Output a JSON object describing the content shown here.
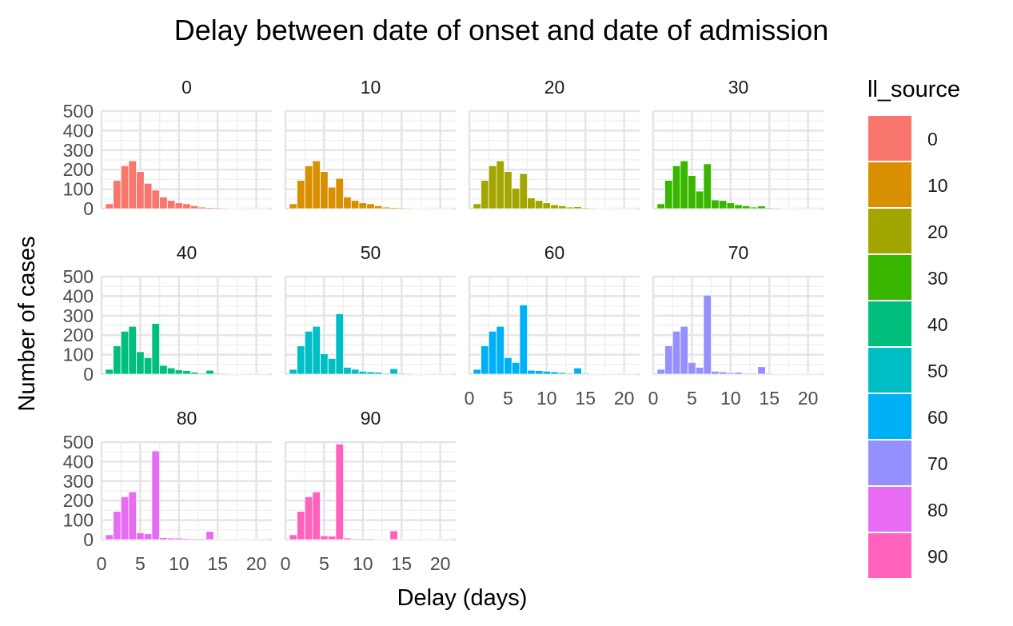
{
  "chart_data": {
    "type": "bar",
    "title": "Delay between date of onset and date of admission",
    "xlabel": "Delay (days)",
    "ylabel": "Number of cases",
    "xlim": [
      0,
      22
    ],
    "ylim": [
      0,
      500
    ],
    "x_ticks": [
      0,
      5,
      10,
      15,
      20
    ],
    "y_ticks": [
      0,
      100,
      200,
      300,
      400,
      500
    ],
    "grid": true,
    "legend": {
      "title": "ll_source",
      "placement": "right",
      "entries": [
        "0",
        "10",
        "20",
        "30",
        "40",
        "50",
        "60",
        "70",
        "80",
        "90"
      ]
    },
    "x": [
      1,
      2,
      3,
      4,
      5,
      6,
      7,
      8,
      9,
      10,
      11,
      12,
      13,
      14,
      15,
      16,
      17,
      18,
      19,
      20,
      21
    ],
    "series": [
      {
        "name": "0",
        "color": "#F8766D",
        "values": [
          25,
          145,
          220,
          245,
          190,
          130,
          95,
          60,
          42,
          30,
          25,
          15,
          8,
          6,
          5,
          4,
          3,
          3,
          1,
          1,
          1
        ]
      },
      {
        "name": "10",
        "color": "#D89000",
        "values": [
          25,
          145,
          220,
          245,
          190,
          110,
          155,
          60,
          42,
          30,
          25,
          15,
          8,
          6,
          5,
          4,
          3,
          3,
          1,
          1,
          1
        ]
      },
      {
        "name": "20",
        "color": "#A3A500",
        "values": [
          25,
          145,
          220,
          245,
          190,
          105,
          180,
          55,
          42,
          30,
          20,
          15,
          8,
          10,
          5,
          4,
          3,
          3,
          1,
          1,
          1
        ]
      },
      {
        "name": "30",
        "color": "#39B600",
        "values": [
          25,
          145,
          220,
          245,
          170,
          90,
          230,
          45,
          42,
          30,
          20,
          15,
          8,
          14,
          5,
          4,
          3,
          3,
          1,
          1,
          1
        ]
      },
      {
        "name": "40",
        "color": "#00BF7D",
        "values": [
          25,
          145,
          220,
          245,
          115,
          85,
          260,
          45,
          32,
          22,
          18,
          10,
          5,
          20,
          5,
          4,
          3,
          2,
          1,
          1,
          1
        ]
      },
      {
        "name": "50",
        "color": "#00BFC4",
        "values": [
          25,
          145,
          220,
          245,
          105,
          80,
          310,
          35,
          25,
          15,
          12,
          10,
          5,
          28,
          5,
          4,
          3,
          2,
          1,
          1,
          1
        ]
      },
      {
        "name": "60",
        "color": "#00B0F6",
        "values": [
          25,
          145,
          220,
          245,
          85,
          60,
          355,
          20,
          18,
          15,
          12,
          8,
          5,
          32,
          5,
          3,
          2,
          2,
          1,
          1,
          1
        ]
      },
      {
        "name": "70",
        "color": "#9590FF",
        "values": [
          25,
          145,
          220,
          245,
          60,
          35,
          405,
          15,
          12,
          8,
          10,
          5,
          5,
          38,
          5,
          3,
          2,
          2,
          1,
          1,
          1
        ]
      },
      {
        "name": "80",
        "color": "#E76BF3",
        "values": [
          25,
          145,
          220,
          245,
          35,
          30,
          455,
          10,
          8,
          8,
          6,
          5,
          5,
          42,
          4,
          3,
          2,
          2,
          1,
          1,
          1
        ]
      },
      {
        "name": "90",
        "color": "#FF62BC",
        "values": [
          25,
          145,
          220,
          245,
          20,
          18,
          490,
          8,
          5,
          5,
          5,
          3,
          3,
          45,
          4,
          3,
          2,
          2,
          1,
          1,
          1
        ]
      }
    ]
  }
}
